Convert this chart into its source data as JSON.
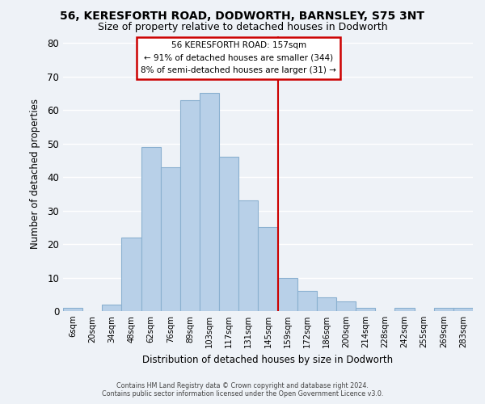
{
  "title": "56, KERESFORTH ROAD, DODWORTH, BARNSLEY, S75 3NT",
  "subtitle": "Size of property relative to detached houses in Dodworth",
  "xlabel": "Distribution of detached houses by size in Dodworth",
  "ylabel": "Number of detached properties",
  "bar_labels": [
    "6sqm",
    "20sqm",
    "34sqm",
    "48sqm",
    "62sqm",
    "76sqm",
    "89sqm",
    "103sqm",
    "117sqm",
    "131sqm",
    "145sqm",
    "159sqm",
    "172sqm",
    "186sqm",
    "200sqm",
    "214sqm",
    "228sqm",
    "242sqm",
    "255sqm",
    "269sqm",
    "283sqm"
  ],
  "bar_values": [
    1,
    0,
    2,
    22,
    49,
    43,
    63,
    65,
    46,
    33,
    25,
    10,
    6,
    4,
    3,
    1,
    0,
    1,
    0,
    1,
    1
  ],
  "bar_color": "#b8d0e8",
  "bar_edge_color": "#8ab0d0",
  "ylim": [
    0,
    82
  ],
  "yticks": [
    0,
    10,
    20,
    30,
    40,
    50,
    60,
    70,
    80
  ],
  "vline_color": "#cc0000",
  "annotation_title": "56 KERESFORTH ROAD: 157sqm",
  "annotation_line1": "← 91% of detached houses are smaller (344)",
  "annotation_line2": "8% of semi-detached houses are larger (31) →",
  "footer_line1": "Contains HM Land Registry data © Crown copyright and database right 2024.",
  "footer_line2": "Contains public sector information licensed under the Open Government Licence v3.0.",
  "background_color": "#eef2f7",
  "grid_color": "#ffffff",
  "annotation_box_color": "#ffffff",
  "annotation_box_edge": "#cc0000"
}
